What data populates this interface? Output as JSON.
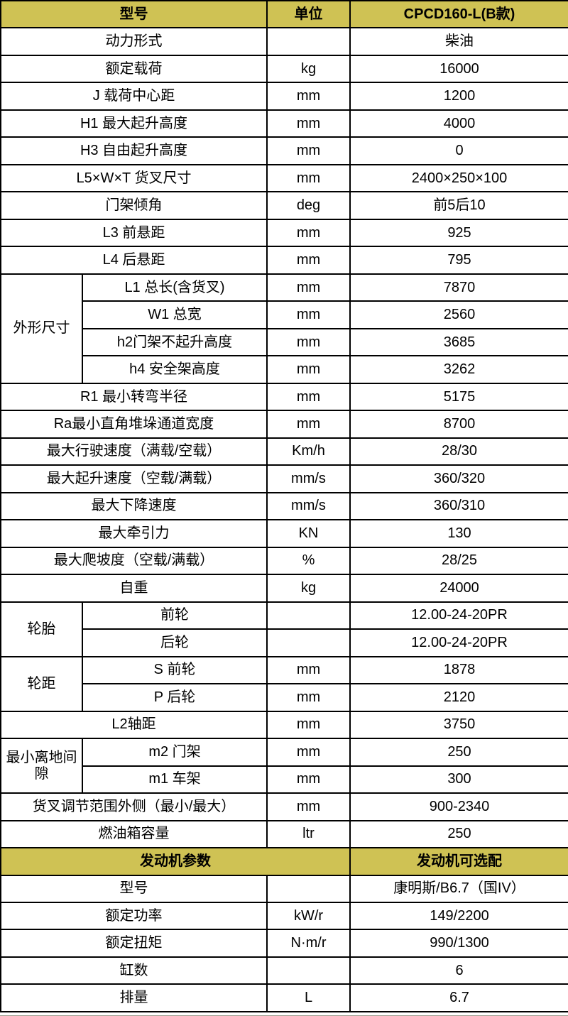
{
  "colors": {
    "header_bg": "#cfc254",
    "border": "#000000",
    "text": "#000000"
  },
  "table": {
    "header": {
      "model_label": "型号",
      "unit_label": "单位",
      "model_value": "CPCD160-L(B款)"
    },
    "rows": [
      {
        "label": "动力形式",
        "unit": "",
        "value": "柴油"
      },
      {
        "label": "额定载荷",
        "unit": "kg",
        "value": "16000"
      },
      {
        "label": "J 载荷中心距",
        "unit": "mm",
        "value": "1200"
      },
      {
        "label": "H1 最大起升高度",
        "unit": "mm",
        "value": "4000"
      },
      {
        "label": "H3 自由起升高度",
        "unit": "mm",
        "value": "0"
      },
      {
        "label": "L5×W×T 货叉尺寸",
        "unit": "mm",
        "value": "2400×250×100"
      },
      {
        "label": "门架倾角",
        "unit": "deg",
        "value": "前5后10"
      },
      {
        "label": "L3 前悬距",
        "unit": "mm",
        "value": "925"
      },
      {
        "label": "L4 后悬距",
        "unit": "mm",
        "value": "795"
      },
      {
        "group": "外形尺寸",
        "items": [
          {
            "label": "L1 总长(含货叉)",
            "unit": "mm",
            "value": "7870"
          },
          {
            "label": "W1 总宽",
            "unit": "mm",
            "value": "2560"
          },
          {
            "label": "h2门架不起升高度",
            "unit": "mm",
            "value": "3685"
          },
          {
            "label": "h4 安全架高度",
            "unit": "mm",
            "value": "3262"
          }
        ]
      },
      {
        "label": "R1 最小转弯半径",
        "unit": "mm",
        "value": "5175"
      },
      {
        "label": "Ra最小直角堆垛通道宽度",
        "unit": "mm",
        "value": "8700"
      },
      {
        "label": "最大行驶速度（满载/空载）",
        "unit": "Km/h",
        "value": "28/30"
      },
      {
        "label": "最大起升速度（空载/满载）",
        "unit": "mm/s",
        "value": "360/320"
      },
      {
        "label": "最大下降速度",
        "unit": "mm/s",
        "value": "360/310"
      },
      {
        "label": "最大牵引力",
        "unit": "KN",
        "value": "130"
      },
      {
        "label": "最大爬坡度（空载/满载）",
        "unit": "%",
        "value": "28/25"
      },
      {
        "label": "自重",
        "unit": "kg",
        "value": "24000"
      },
      {
        "group": "轮胎",
        "items": [
          {
            "label": "前轮",
            "unit": "",
            "value": "12.00-24-20PR"
          },
          {
            "label": "后轮",
            "unit": "",
            "value": "12.00-24-20PR"
          }
        ]
      },
      {
        "group": "轮距",
        "items": [
          {
            "label": "S 前轮",
            "unit": "mm",
            "value": "1878"
          },
          {
            "label": "P 后轮",
            "unit": "mm",
            "value": "2120"
          }
        ]
      },
      {
        "label": "L2轴距",
        "unit": "mm",
        "value": "3750"
      },
      {
        "group": "最小离地间隙",
        "items": [
          {
            "label": "m2 门架",
            "unit": "mm",
            "value": "250"
          },
          {
            "label": "m1 车架",
            "unit": "mm",
            "value": "300"
          }
        ]
      },
      {
        "label": "货叉调节范围外侧（最小/最大）",
        "unit": "mm",
        "value": "900-2340"
      },
      {
        "label": "燃油箱容量",
        "unit": "ltr",
        "value": "250"
      }
    ],
    "engine_header": {
      "left": "发动机参数",
      "right": "发动机可选配"
    },
    "engine_rows": [
      {
        "label": "型号",
        "unit": "",
        "value": "康明斯/B6.7（国IV）"
      },
      {
        "label": "额定功率",
        "unit": "kW/r",
        "value": "149/2200"
      },
      {
        "label": "额定扭矩",
        "unit": "N·m/r",
        "value": "990/1300"
      },
      {
        "label": "缸数",
        "unit": "",
        "value": "6"
      },
      {
        "label": "排量",
        "unit": "L",
        "value": "6.7"
      }
    ]
  }
}
